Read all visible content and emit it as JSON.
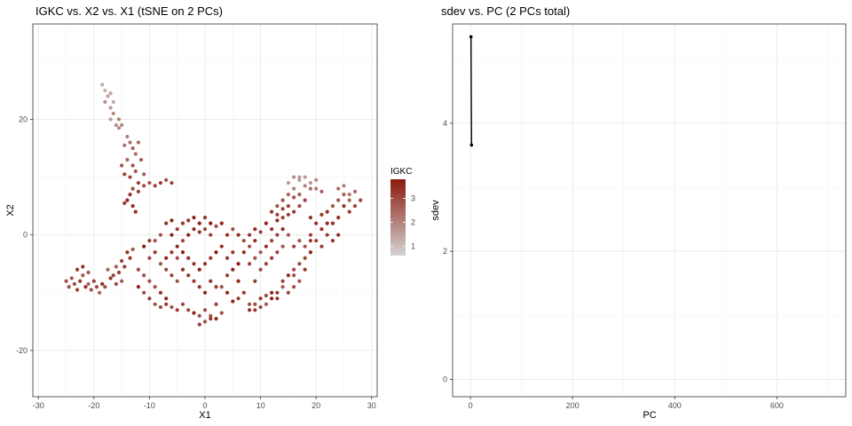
{
  "chart_data": [
    {
      "type": "scatter",
      "title": "IGKC vs. X2 vs. X1 (tSNE on 2 PCs)",
      "xlabel": "X1",
      "ylabel": "X2",
      "xlim": [
        -31,
        31
      ],
      "ylim": [
        -28,
        36.5
      ],
      "xticks": [
        -30,
        -20,
        -10,
        0,
        10,
        20,
        30
      ],
      "yticks": [
        -20,
        0,
        20
      ],
      "grid": true,
      "legend": {
        "title": "IGKC",
        "position": "right",
        "ticks": [
          1,
          2,
          3
        ],
        "range": [
          0.6,
          3.8
        ],
        "low_color": "#d3d3d3",
        "high_color": "#8b1a0e"
      },
      "clusters": [
        {
          "region": "upper-left arm",
          "points": [
            [
              -18.5,
              26
            ],
            [
              -18,
              25
            ],
            [
              -17.5,
              24
            ],
            [
              -18,
              23
            ],
            [
              -17,
              22
            ],
            [
              -16.5,
              21
            ],
            [
              -17,
              20
            ],
            [
              -16,
              19
            ],
            [
              -15.5,
              18.5
            ],
            [
              -17,
              24.5
            ],
            [
              -16.5,
              23
            ],
            [
              -15.5,
              20
            ],
            [
              -15,
              19
            ],
            [
              -14,
              17
            ],
            [
              -13.5,
              16
            ],
            [
              -14.5,
              15.5
            ],
            [
              -13,
              15
            ],
            [
              -12.5,
              14
            ],
            [
              -14,
              13
            ],
            [
              -13,
              12
            ],
            [
              -12.5,
              11
            ],
            [
              -13.5,
              10
            ],
            [
              -12,
              9
            ],
            [
              -13,
              8
            ],
            [
              -12,
              7.5
            ],
            [
              -13.5,
              7
            ],
            [
              -11,
              8.5
            ],
            [
              -10,
              9
            ],
            [
              -9,
              8.5
            ],
            [
              -8,
              9
            ],
            [
              -7,
              9.5
            ],
            [
              -6,
              9
            ],
            [
              -14,
              6
            ],
            [
              -13,
              5
            ],
            [
              -14.5,
              5.5
            ],
            [
              -12.5,
              4
            ],
            [
              -15,
              12
            ],
            [
              -14.5,
              10.5
            ],
            [
              -12,
              16
            ],
            [
              -11.5,
              13
            ],
            [
              -11,
              10.5
            ]
          ],
          "value": 2.2
        },
        {
          "region": "left tail",
          "points": [
            [
              -25,
              -8
            ],
            [
              -24.5,
              -9
            ],
            [
              -24,
              -7.5
            ],
            [
              -23.5,
              -8.5
            ],
            [
              -23,
              -9.5
            ],
            [
              -22.5,
              -8
            ],
            [
              -22,
              -7
            ],
            [
              -21.5,
              -9
            ],
            [
              -21,
              -8.5
            ],
            [
              -20.5,
              -9.5
            ],
            [
              -20,
              -8
            ],
            [
              -19.5,
              -9
            ],
            [
              -19,
              -10
            ],
            [
              -18.5,
              -8.5
            ],
            [
              -18,
              -9
            ],
            [
              -17,
              -7.5
            ],
            [
              -16.5,
              -7
            ],
            [
              -16,
              -8.5
            ],
            [
              -15,
              -8
            ],
            [
              -23,
              -6
            ],
            [
              -22,
              -5.5
            ],
            [
              -21,
              -6.5
            ],
            [
              -17.5,
              -6
            ],
            [
              -16,
              -5.5
            ],
            [
              -15.5,
              -6.5
            ],
            [
              -15,
              -4.5
            ],
            [
              -14.5,
              -5.5
            ],
            [
              -14,
              -3
            ],
            [
              -13,
              -2.5
            ],
            [
              -13.5,
              -4
            ]
          ],
          "value": 3.0
        },
        {
          "region": "central loop",
          "points": [
            [
              -12,
              -6
            ],
            [
              -11,
              -7
            ],
            [
              -10,
              -8
            ],
            [
              -9,
              -9
            ],
            [
              -8,
              -10
            ],
            [
              -7,
              -11
            ],
            [
              -12,
              -9
            ],
            [
              -11,
              -10
            ],
            [
              -10,
              -11
            ],
            [
              -9,
              -12
            ],
            [
              -8,
              -12.5
            ],
            [
              -7,
              -12
            ],
            [
              -6,
              -12.5
            ],
            [
              -5,
              -13
            ],
            [
              -4,
              -12
            ],
            [
              -3,
              -13
            ],
            [
              -2,
              -13.5
            ],
            [
              -1,
              -14
            ],
            [
              0,
              -13
            ],
            [
              1,
              -14
            ],
            [
              2,
              -14.5
            ],
            [
              3,
              -13.5
            ],
            [
              -1,
              -15.5
            ],
            [
              0,
              -15
            ],
            [
              1,
              -14.5
            ],
            [
              2,
              -12
            ],
            [
              -8,
              -5
            ],
            [
              -7,
              -4
            ],
            [
              -6,
              -3
            ],
            [
              -5,
              -2
            ],
            [
              -4,
              -1
            ],
            [
              -3,
              0
            ],
            [
              -2,
              1
            ],
            [
              -1,
              0.5
            ],
            [
              0,
              1
            ],
            [
              1,
              0
            ],
            [
              2,
              1.5
            ],
            [
              3,
              2
            ],
            [
              -9,
              -1
            ],
            [
              -8,
              0
            ],
            [
              -7,
              -6
            ],
            [
              -6,
              -7
            ],
            [
              -5,
              -8
            ],
            [
              -4,
              -6
            ],
            [
              -3,
              -7
            ],
            [
              -2,
              -8
            ],
            [
              -1,
              -9
            ],
            [
              0,
              -10
            ],
            [
              1,
              -8
            ],
            [
              2,
              -9
            ],
            [
              -5,
              -4
            ],
            [
              -4,
              -3
            ],
            [
              -3,
              -4
            ],
            [
              -2,
              -5
            ],
            [
              -1,
              -6
            ],
            [
              0,
              -5
            ],
            [
              1,
              -4
            ],
            [
              2,
              -3
            ],
            [
              -6,
              0
            ],
            [
              -5,
              1
            ],
            [
              -4,
              2
            ],
            [
              -3,
              2.5
            ],
            [
              -2,
              3
            ],
            [
              -1,
              2
            ],
            [
              0,
              3
            ],
            [
              1,
              2
            ],
            [
              -7,
              2
            ],
            [
              -6,
              2.5
            ],
            [
              -9,
              -3
            ],
            [
              -10,
              -4
            ],
            [
              -11,
              -2
            ],
            [
              -10,
              -1
            ],
            [
              3,
              -2
            ],
            [
              4,
              -4
            ],
            [
              5,
              -6
            ],
            [
              6,
              -8
            ],
            [
              7,
              -10
            ],
            [
              6,
              -11
            ],
            [
              5,
              -11.5
            ],
            [
              4,
              -10
            ],
            [
              3,
              -9
            ],
            [
              4,
              -7
            ],
            [
              5,
              -3
            ],
            [
              6,
              -5
            ],
            [
              4,
              0
            ],
            [
              5,
              1
            ],
            [
              6,
              0
            ],
            [
              7,
              -1
            ]
          ],
          "value": 3.3
        },
        {
          "region": "right lower arc",
          "points": [
            [
              8,
              -12
            ],
            [
              9,
              -13
            ],
            [
              10,
              -12.5
            ],
            [
              11,
              -12
            ],
            [
              12,
              -11
            ],
            [
              13,
              -10
            ],
            [
              14,
              -9
            ],
            [
              15,
              -10
            ],
            [
              16,
              -9
            ],
            [
              8,
              -13
            ],
            [
              9,
              -12
            ],
            [
              10,
              -11
            ],
            [
              11,
              -10.5
            ],
            [
              12,
              -10
            ],
            [
              13,
              -11
            ],
            [
              14,
              -8
            ],
            [
              15,
              -7
            ],
            [
              16,
              -6
            ],
            [
              17,
              -5
            ],
            [
              18,
              -4
            ],
            [
              19,
              -3
            ],
            [
              18,
              -6
            ],
            [
              17,
              -8
            ],
            [
              16,
              -7
            ],
            [
              9,
              -8
            ],
            [
              10,
              -6
            ],
            [
              11,
              -5
            ],
            [
              12,
              -4
            ],
            [
              13,
              -3
            ],
            [
              14,
              -2
            ],
            [
              10,
              -3
            ],
            [
              11,
              -2
            ],
            [
              12,
              -1
            ],
            [
              13,
              0
            ],
            [
              14,
              1
            ],
            [
              15,
              0
            ],
            [
              16,
              -2
            ],
            [
              17,
              -1
            ],
            [
              8,
              -5
            ],
            [
              9,
              -4
            ],
            [
              8,
              -2
            ],
            [
              9,
              -1
            ],
            [
              7,
              -3
            ],
            [
              18,
              -2
            ],
            [
              19,
              -1
            ]
          ],
          "value": 3.2
        },
        {
          "region": "upper-right arm",
          "points": [
            [
              8,
              0
            ],
            [
              9,
              1
            ],
            [
              10,
              0.5
            ],
            [
              11,
              2
            ],
            [
              12,
              1
            ],
            [
              13,
              2.5
            ],
            [
              14,
              3
            ],
            [
              15,
              3.5
            ],
            [
              15,
              5
            ],
            [
              16,
              4
            ],
            [
              17,
              5
            ],
            [
              18,
              6
            ],
            [
              17,
              7
            ],
            [
              16,
              8
            ],
            [
              15,
              9
            ],
            [
              16,
              10
            ],
            [
              17,
              9.5
            ],
            [
              18,
              10
            ],
            [
              19,
              9
            ],
            [
              20,
              9.5
            ],
            [
              15,
              7
            ],
            [
              14,
              6
            ],
            [
              13,
              5
            ],
            [
              12,
              4
            ],
            [
              19,
              8
            ],
            [
              18,
              8.5
            ],
            [
              17,
              10
            ],
            [
              16,
              6.5
            ],
            [
              14,
              4.5
            ],
            [
              13,
              3.5
            ],
            [
              20,
              8
            ],
            [
              21,
              7.5
            ],
            [
              19,
              3
            ],
            [
              20,
              2
            ],
            [
              21,
              1
            ],
            [
              22,
              0
            ],
            [
              23,
              2
            ],
            [
              24,
              3
            ],
            [
              22,
              4
            ],
            [
              23,
              5
            ],
            [
              24,
              6
            ],
            [
              25,
              7
            ],
            [
              26,
              6
            ],
            [
              27,
              5
            ],
            [
              28,
              6
            ],
            [
              26,
              4
            ],
            [
              25,
              5
            ],
            [
              24,
              8
            ],
            [
              25,
              8.5
            ],
            [
              26,
              7
            ],
            [
              27,
              7.5
            ],
            [
              22,
              2
            ],
            [
              21,
              3.5
            ],
            [
              23,
              -1
            ],
            [
              24,
              0
            ],
            [
              20,
              -1
            ],
            [
              21,
              -2
            ],
            [
              19,
              0
            ]
          ],
          "value": 2.4
        }
      ]
    },
    {
      "type": "line",
      "title": "sdev vs. PC (2 PCs total)",
      "xlabel": "PC",
      "ylabel": "sdev",
      "xlim": [
        -35,
        735
      ],
      "ylim": [
        -0.27,
        5.55
      ],
      "xticks": [
        0,
        200,
        400,
        600
      ],
      "yticks": [
        0,
        2,
        4
      ],
      "grid": true,
      "series": [
        {
          "x": [
            1,
            2
          ],
          "y": [
            5.35,
            3.66
          ]
        }
      ]
    }
  ]
}
